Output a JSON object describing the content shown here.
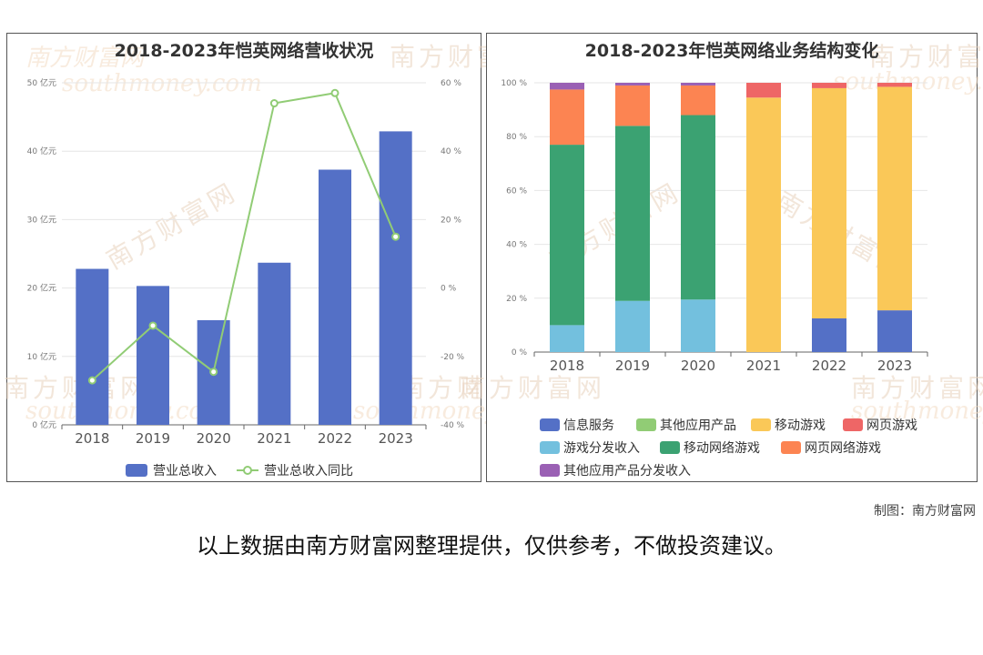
{
  "colors": {
    "bar_blue": "#5470c6",
    "line_green": "#91cc75",
    "info_service": "#5470c6",
    "other_app": "#91cc75",
    "mobile_game": "#fac858",
    "web_game": "#ee6666",
    "game_dist": "#73c0de",
    "mobile_net_game": "#3ba272",
    "web_net_game": "#fc8452",
    "other_app_dist": "#9a60b4"
  },
  "watermark": {
    "cn": "南方财富网",
    "en": "southmoney.com"
  },
  "credit": "制图：南方财富网",
  "disclaimer": "以上数据由南方财富网整理提供，仅供参考，不做投资建议。",
  "chart_data": [
    {
      "type": "bar",
      "title": "2018-2023年恺英网络营收状况",
      "categories": [
        "2018",
        "2019",
        "2020",
        "2021",
        "2022",
        "2023"
      ],
      "y_left": {
        "ticks": [
          "0 亿元",
          "10 亿元",
          "20 亿元",
          "30 亿元",
          "40 亿元",
          "50 亿元"
        ],
        "ylim": [
          0,
          50
        ]
      },
      "y_right": {
        "ticks": [
          "-40 %",
          "-20 %",
          "0 %",
          "20 %",
          "40 %",
          "60 %"
        ],
        "ylim": [
          -40,
          60
        ]
      },
      "grid": true,
      "legend_position": "bottom",
      "series": [
        {
          "name": "营业总收入",
          "kind": "bar",
          "axis": "left",
          "values": [
            22.8,
            20.3,
            15.3,
            23.7,
            37.3,
            42.9
          ]
        },
        {
          "name": "营业总收入同比",
          "kind": "line",
          "axis": "right",
          "values": [
            -27.0,
            -11.0,
            -24.5,
            54.0,
            57.0,
            15.0
          ]
        }
      ]
    },
    {
      "type": "bar",
      "stacked": true,
      "title": "2018-2023年恺英网络业务结构变化",
      "categories": [
        "2018",
        "2019",
        "2020",
        "2021",
        "2022",
        "2023"
      ],
      "y_ticks": [
        "0 %",
        "20 %",
        "40 %",
        "60 %",
        "80 %",
        "100 %"
      ],
      "ylim": [
        0,
        100
      ],
      "grid": true,
      "legend_position": "bottom",
      "legend_order": [
        "信息服务",
        "其他应用产品",
        "移动游戏",
        "网页游戏",
        "游戏分发收入",
        "移动网络游戏",
        "网页网络游戏",
        "其他应用产品分发收入"
      ],
      "series": [
        {
          "name": "信息服务",
          "values": [
            0,
            0,
            0,
            0,
            12.5,
            15.5
          ]
        },
        {
          "name": "游戏分发收入",
          "values": [
            10.0,
            19.0,
            19.5,
            0,
            0,
            0
          ]
        },
        {
          "name": "移动网络游戏",
          "values": [
            67.0,
            65.0,
            68.5,
            0,
            0,
            0
          ]
        },
        {
          "name": "网页网络游戏",
          "values": [
            20.5,
            15.0,
            11.0,
            0,
            0,
            0
          ]
        },
        {
          "name": "其他应用产品分发收入",
          "values": [
            2.5,
            1.0,
            1.0,
            0,
            0,
            0
          ]
        },
        {
          "name": "其他应用产品",
          "values": [
            0,
            0,
            0,
            0,
            0,
            0
          ]
        },
        {
          "name": "移动游戏",
          "values": [
            0,
            0,
            0,
            94.5,
            85.5,
            83.0
          ]
        },
        {
          "name": "网页游戏",
          "values": [
            0,
            0,
            0,
            5.5,
            2.0,
            1.5
          ]
        }
      ]
    }
  ]
}
